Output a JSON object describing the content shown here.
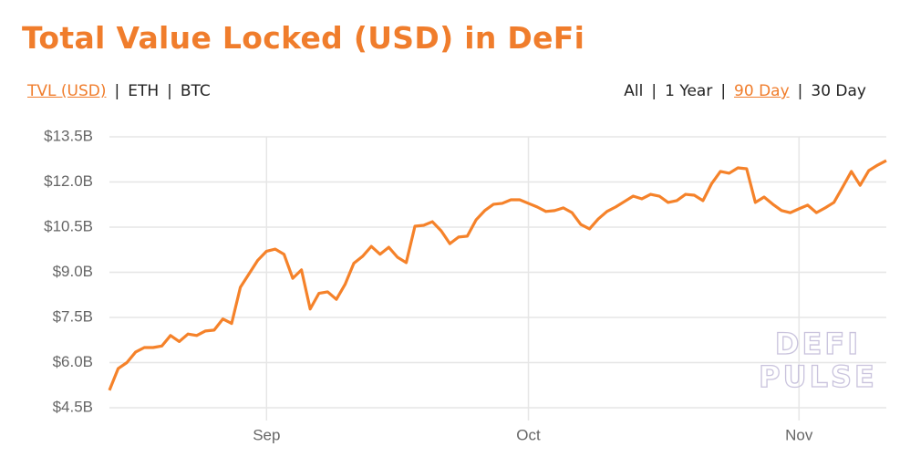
{
  "header": {
    "tabs_left": [
      {
        "label": "TVL (USD)",
        "active": true
      },
      {
        "label": "ETH",
        "active": false
      },
      {
        "label": "BTC",
        "active": false
      }
    ],
    "tabs_right": [
      {
        "label": "All",
        "active": false
      },
      {
        "label": "1 Year",
        "active": false
      },
      {
        "label": "90 Day",
        "active": true
      },
      {
        "label": "30 Day",
        "active": false
      }
    ],
    "separator": "|"
  },
  "watermark": [
    "DEFI",
    "PULSE"
  ],
  "chart_data": {
    "type": "line",
    "title": "Total Value Locked (USD) in DeFi",
    "x": [
      0,
      1,
      2,
      3,
      4,
      5,
      6,
      7,
      8,
      9,
      10,
      11,
      12,
      13,
      14,
      15,
      16,
      17,
      18,
      19,
      20,
      21,
      22,
      23,
      24,
      25,
      26,
      27,
      28,
      29,
      30,
      31,
      32,
      33,
      34,
      35,
      36,
      37,
      38,
      39,
      40,
      41,
      42,
      43,
      44,
      45,
      46,
      47,
      48,
      49,
      50,
      51,
      52,
      53,
      54,
      55,
      56,
      57,
      58,
      59,
      60,
      61,
      62,
      63,
      64,
      65,
      66,
      67,
      68,
      69,
      70,
      71,
      72,
      73,
      74,
      75,
      76,
      77,
      78,
      79,
      80,
      81,
      82,
      83,
      84,
      85,
      86,
      87,
      88,
      89
    ],
    "series": [
      {
        "name": "TVL (USD)",
        "color": "#f5822a",
        "values": [
          5.08,
          5.8,
          6.0,
          6.35,
          6.5,
          6.5,
          6.55,
          6.9,
          6.7,
          6.95,
          6.9,
          7.05,
          7.08,
          7.45,
          7.3,
          8.5,
          8.95,
          9.4,
          9.7,
          9.77,
          9.6,
          8.8,
          9.08,
          7.78,
          8.3,
          8.35,
          8.1,
          8.6,
          9.3,
          9.53,
          9.86,
          9.6,
          9.83,
          9.5,
          9.32,
          10.53,
          10.56,
          10.68,
          10.38,
          9.95,
          10.17,
          10.2,
          10.74,
          11.05,
          11.26,
          11.29,
          11.41,
          11.41,
          11.29,
          11.17,
          11.02,
          11.05,
          11.14,
          10.98,
          10.59,
          10.44,
          10.77,
          11.02,
          11.17,
          11.35,
          11.53,
          11.44,
          11.59,
          11.53,
          11.32,
          11.38,
          11.59,
          11.56,
          11.38,
          11.95,
          12.35,
          12.29,
          12.47,
          12.44,
          11.32,
          11.5,
          11.26,
          11.05,
          10.98,
          11.11,
          11.23,
          10.98,
          11.14,
          11.32,
          11.83,
          12.35,
          11.89,
          12.38,
          12.56,
          12.71
        ]
      }
    ],
    "xlim": [
      0,
      89
    ],
    "xticks": [
      {
        "value": 18,
        "label": "Sep"
      },
      {
        "value": 48,
        "label": "Oct"
      },
      {
        "value": 79,
        "label": "Nov"
      }
    ],
    "ylim": [
      4.5,
      13.5
    ],
    "yticks": [
      {
        "value": 4.5,
        "label": "$4.5B"
      },
      {
        "value": 6.0,
        "label": "$6.0B"
      },
      {
        "value": 7.5,
        "label": "$7.5B"
      },
      {
        "value": 9.0,
        "label": "$9.0B"
      },
      {
        "value": 10.5,
        "label": "$10.5B"
      },
      {
        "value": 12.0,
        "label": "$12.0B"
      },
      {
        "value": 13.5,
        "label": "$13.5B"
      }
    ],
    "grid": true
  }
}
